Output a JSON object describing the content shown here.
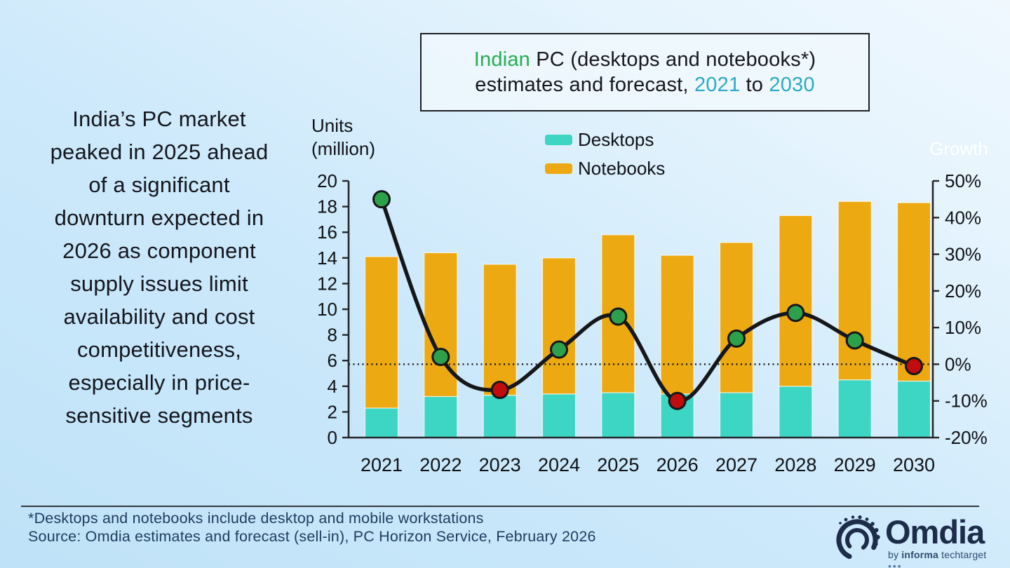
{
  "left_note": {
    "text": "India’s PC market\npeaked in 2025 ahead\nof a significant\ndownturn expected in\n2026 as component\nsupply issues limit\navailability and cost\ncompetitiveness,\nespecially in price-\nsensitive segments"
  },
  "title": {
    "line1": [
      {
        "text": "Indian ",
        "css": "color:#27AE52"
      },
      {
        "text": "PC (desktops and notebooks*)",
        "css": "color:#17181d"
      }
    ],
    "line2": [
      {
        "text": "estimates and forecast, ",
        "css": "color:#17181d"
      },
      {
        "text": "2021",
        "css": "color:#2EA9C7"
      },
      {
        "text": " to ",
        "css": "color:#17181d"
      },
      {
        "text": "2030",
        "css": "color:#2EA9C7"
      }
    ]
  },
  "legend": {
    "items": [
      {
        "label": "Desktops",
        "color": "#3DD5C3",
        "swatch_css": "background:#3DD5C3"
      },
      {
        "label": "Notebooks",
        "color": "#ECA911",
        "swatch_css": "background:#ECA911"
      }
    ]
  },
  "chart_data": {
    "type": "bar",
    "subtype": "stacked-bars-with-growth-line",
    "categories": [
      "2021",
      "2022",
      "2023",
      "2024",
      "2025",
      "2026",
      "2027",
      "2028",
      "2029",
      "2030"
    ],
    "series": [
      {
        "name": "Desktops",
        "type": "bar",
        "color": "#3DD5C3",
        "values": [
          2.3,
          3.2,
          3.3,
          3.4,
          3.5,
          3.4,
          3.5,
          4.0,
          4.5,
          4.4
        ]
      },
      {
        "name": "Notebooks",
        "type": "bar",
        "color": "#ECA911",
        "values": [
          11.8,
          11.2,
          10.2,
          10.6,
          12.3,
          10.8,
          11.7,
          13.3,
          13.9,
          13.9
        ]
      },
      {
        "name": "Growth",
        "type": "line",
        "axis": "right",
        "color": "#15171a",
        "values": [
          45,
          2,
          -7,
          4,
          13,
          -10,
          7,
          14,
          6.5,
          -0.5
        ],
        "marker_colors": [
          "#2CA04A",
          "#2CA04A",
          "#C00C0C",
          "#2CA04A",
          "#2CA04A",
          "#C00C0C",
          "#2CA04A",
          "#2CA04A",
          "#2CA04A",
          "#C00C0C"
        ],
        "positive_marker_color": "#2CA04A",
        "negative_marker_color": "#C00C0C"
      }
    ],
    "totals": [
      14.1,
      14.4,
      13.5,
      14.0,
      15.8,
      14.2,
      15.2,
      17.3,
      18.4,
      18.3
    ],
    "left_axis": {
      "label": "Units (million)",
      "label_lines": [
        "Units",
        "(million)"
      ],
      "min": 0,
      "max": 20,
      "step": 2
    },
    "right_axis": {
      "label": "Growth",
      "min": -20,
      "max": 50,
      "step": 10,
      "suffix": "%"
    },
    "zero_line": true,
    "grid": false,
    "legend_position": "top-center"
  },
  "footer": {
    "footnote": "*Desktops and notebooks include desktop and mobile workstations",
    "source": "Source: Omdia estimates and forecast (sell-in), PC Horizon Service, February 2026"
  },
  "logo": {
    "wordmark": "Omdia",
    "tagline_by": "by ",
    "tagline_brand": "informa",
    "tagline_rest": " techtarget ",
    "tagline_dots": "•••"
  }
}
